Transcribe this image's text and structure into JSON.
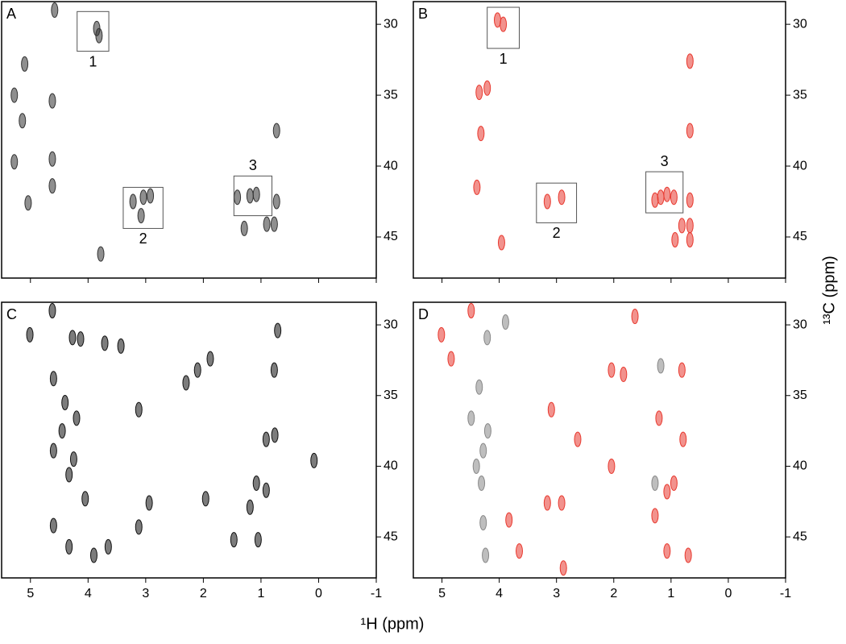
{
  "xlabel": "¹H (ppm)",
  "ylabel": "¹³C (ppm)",
  "chart_data": [
    {
      "type": "scatter",
      "panel_label": "A",
      "xlim": [
        5.5,
        -1
      ],
      "ylim": [
        28.4,
        47.9
      ],
      "xticks": [
        5,
        4,
        3,
        2,
        1,
        0,
        -1
      ],
      "yticks": [
        30,
        35,
        40,
        45
      ],
      "show_xtick_labels": false,
      "series": [
        {
          "color": "#333333",
          "x": [
            5.1,
            5.28,
            5.14,
            4.62,
            5.28,
            4.62,
            4.62,
            5.04,
            3.85,
            3.81,
            3.22,
            3.04,
            2.92,
            3.08,
            1.41,
            1.19,
            1.08,
            0.73,
            0.77,
            0.9,
            0.73,
            4.58,
            3.78,
            1.29
          ],
          "y": [
            32.8,
            35,
            36.8,
            35.4,
            39.7,
            39.5,
            41.4,
            42.6,
            30.3,
            30.8,
            42.5,
            42.2,
            42.1,
            43.5,
            42.2,
            42.1,
            42,
            42.5,
            44.1,
            44.1,
            37.5,
            29,
            46.2,
            44.4
          ]
        }
      ],
      "annotations": [
        {
          "label": "1",
          "xrange": [
            4.19,
            3.64
          ],
          "yrange": [
            29.1,
            31.9
          ],
          "label_side": "below"
        },
        {
          "label": "2",
          "xrange": [
            3.39,
            2.7
          ],
          "yrange": [
            41.5,
            44.4
          ],
          "label_side": "below"
        },
        {
          "label": "3",
          "xrange": [
            1.47,
            0.81
          ],
          "yrange": [
            40.7,
            43.5
          ],
          "label_side": "above"
        }
      ]
    },
    {
      "type": "scatter",
      "panel_label": "B",
      "xlim": [
        5.5,
        -1
      ],
      "ylim": [
        28.4,
        47.9
      ],
      "xticks": [
        5,
        4,
        3,
        2,
        1,
        0,
        -1
      ],
      "yticks": [
        30,
        35,
        40,
        45
      ],
      "show_xtick_labels": false,
      "series": [
        {
          "color": "#e8392f",
          "x": [
            4.03,
            3.93,
            3.16,
            2.91,
            4.21,
            4.35,
            3.96,
            1.18,
            1.28,
            1.07,
            0.95,
            0.67,
            0.81,
            0.67,
            0.67,
            0.67,
            0.93,
            0.67,
            4.32,
            4.39
          ],
          "y": [
            29.7,
            30,
            42.5,
            42.2,
            34.5,
            34.8,
            45.4,
            42.2,
            42.4,
            42,
            42.2,
            42.4,
            44.2,
            44.2,
            37.5,
            32.6,
            45.2,
            45.2,
            37.7,
            41.5
          ]
        }
      ],
      "annotations": [
        {
          "label": "1",
          "xrange": [
            4.21,
            3.65
          ],
          "yrange": [
            28.8,
            31.7
          ],
          "label_side": "below"
        },
        {
          "label": "2",
          "xrange": [
            3.35,
            2.65
          ],
          "yrange": [
            41.2,
            44
          ],
          "label_side": "below"
        },
        {
          "label": "3",
          "xrange": [
            1.44,
            0.79
          ],
          "yrange": [
            40.4,
            43.3
          ],
          "label_side": "above"
        }
      ]
    },
    {
      "type": "scatter",
      "panel_label": "C",
      "xlim": [
        5.5,
        -1
      ],
      "ylim": [
        28.4,
        47.9
      ],
      "xticks": [
        5,
        4,
        3,
        2,
        1,
        0,
        -1
      ],
      "yticks": [
        30,
        35,
        40,
        45
      ],
      "show_xtick_labels": true,
      "series": [
        {
          "color": "#111111",
          "x": [
            5.01,
            4.62,
            4.13,
            4.27,
            3.71,
            4.6,
            4.4,
            4.2,
            4.6,
            4.33,
            4.05,
            4.33,
            3.9,
            4.6,
            4.45,
            4.25,
            3.65,
            2.94,
            3.12,
            3.12,
            2.3,
            1.88,
            2.1,
            1.19,
            0.91,
            1.08,
            0.91,
            0.76,
            0.08,
            0.77,
            0.71,
            1.47,
            1.05,
            3.43,
            1.96
          ],
          "y": [
            30.7,
            29,
            31,
            30.9,
            31.3,
            33.8,
            35.5,
            36.6,
            38.9,
            40.6,
            42.3,
            45.7,
            46.3,
            44.2,
            37.5,
            39.5,
            45.7,
            42.6,
            36,
            44.3,
            34.1,
            32.4,
            33.2,
            42.9,
            41.7,
            41.2,
            38.1,
            37.8,
            39.6,
            33.2,
            30.4,
            45.2,
            45.2,
            31.5,
            42.3
          ]
        }
      ],
      "annotations": []
    },
    {
      "type": "scatter",
      "panel_label": "D",
      "xlim": [
        5.5,
        -1
      ],
      "ylim": [
        28.4,
        47.9
      ],
      "xticks": [
        5,
        4,
        3,
        2,
        1,
        0,
        -1
      ],
      "yticks": [
        30,
        35,
        40,
        45
      ],
      "show_xtick_labels": true,
      "series": [
        {
          "color": "#888888",
          "x": [
            4.35,
            4.49,
            4.28,
            4.31,
            4.28,
            4.24,
            4.21,
            3.89,
            1.28,
            1.18,
            4.4,
            4.2
          ],
          "y": [
            34.4,
            36.6,
            38.9,
            41.2,
            44,
            46.3,
            30.9,
            29.8,
            41.2,
            32.9,
            40,
            37.5
          ]
        },
        {
          "color": "#e8392f",
          "x": [
            5.01,
            4.84,
            4.49,
            3.09,
            2.63,
            3.16,
            2.91,
            3.83,
            3.65,
            2.88,
            2.04,
            1.83,
            2.04,
            1.63,
            1.28,
            1.07,
            0.95,
            0.79,
            0.81,
            0.7,
            1.07,
            1.21
          ],
          "y": [
            30.7,
            32.4,
            29,
            36,
            38.1,
            42.6,
            42.6,
            43.8,
            46,
            47.2,
            40,
            33.5,
            33.2,
            29.4,
            43.5,
            41.8,
            41.2,
            38.1,
            33.2,
            46.3,
            46,
            36.6
          ]
        }
      ],
      "annotations": []
    }
  ]
}
